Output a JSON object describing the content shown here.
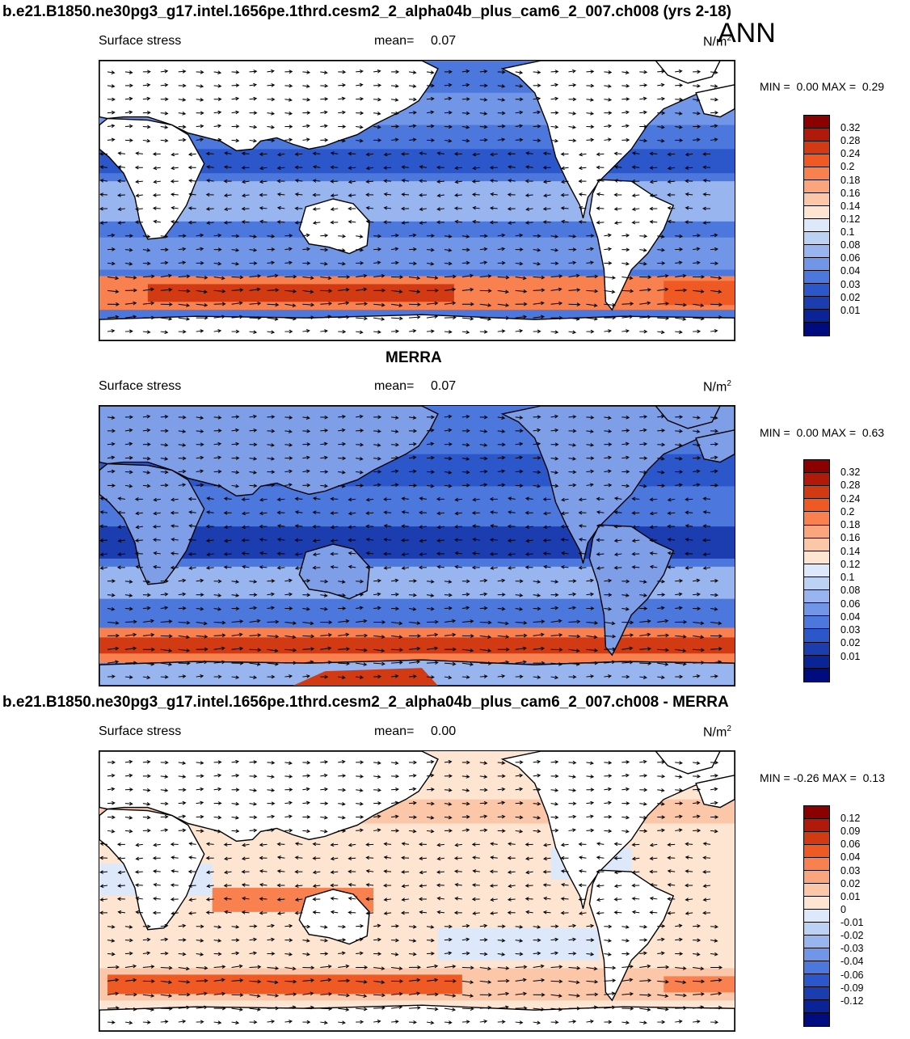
{
  "colors": {
    "ocean_deep": "#1f46c8",
    "ocean_mid": "#3d6de0",
    "ocean_light": "#9cb9f2",
    "stress_high": "#e8552b",
    "stress_peak": "#c8321a",
    "land": "#ffffff",
    "diff_pos": "#f6c3a7",
    "diff_neg": "#c8dbf4"
  },
  "season": "ANN",
  "panels": [
    {
      "title": "b.e21.B1850.ne30pg3_g17.intel.1656pe.1thrd.cesm2_2_alpha04b_plus_cam6_2_007.ch008 (yrs 2-18)",
      "variable": "Surface stress",
      "mean_label": "mean=",
      "mean_value": "0.07",
      "units": "N/m",
      "units_exp": "2",
      "min_label": "MIN =",
      "min_value": "0.00",
      "max_label": "MAX =",
      "max_value": "0.29",
      "colorbar": {
        "colors": [
          "#8b0000",
          "#b11a0b",
          "#d23a14",
          "#ef5a24",
          "#f98150",
          "#fba57e",
          "#fcc6a8",
          "#fde5d2",
          "#dde9fa",
          "#bcd2f5",
          "#98b5ef",
          "#7196e8",
          "#4c77dc",
          "#2b57cb",
          "#1c3db0",
          "#0a2396",
          "#000b80"
        ],
        "labels": [
          "0.32",
          "0.28",
          "0.24",
          "0.2",
          "0.18",
          "0.16",
          "0.14",
          "0.12",
          "0.1",
          "0.08",
          "0.06",
          "0.04",
          "0.03",
          "0.02",
          "0.01"
        ]
      }
    },
    {
      "title": "MERRA",
      "variable": "Surface stress",
      "mean_label": "mean=",
      "mean_value": "0.07",
      "units": "N/m",
      "units_exp": "2",
      "min_label": "MIN =",
      "min_value": "0.00",
      "max_label": "MAX =",
      "max_value": "0.63",
      "colorbar": {
        "colors": [
          "#8b0000",
          "#b11a0b",
          "#d23a14",
          "#ef5a24",
          "#f98150",
          "#fba57e",
          "#fcc6a8",
          "#fde5d2",
          "#dde9fa",
          "#bcd2f5",
          "#98b5ef",
          "#7196e8",
          "#4c77dc",
          "#2b57cb",
          "#1c3db0",
          "#0a2396",
          "#000b80"
        ],
        "labels": [
          "0.32",
          "0.28",
          "0.24",
          "0.2",
          "0.18",
          "0.16",
          "0.14",
          "0.12",
          "0.1",
          "0.08",
          "0.06",
          "0.04",
          "0.03",
          "0.02",
          "0.01"
        ]
      }
    },
    {
      "title": "b.e21.B1850.ne30pg3_g17.intel.1656pe.1thrd.cesm2_2_alpha04b_plus_cam6_2_007.ch008 - MERRA",
      "variable": "Surface stress",
      "mean_label": "mean=",
      "mean_value": "0.00",
      "units": "N/m",
      "units_exp": "2",
      "min_label": "MIN =",
      "min_value": "-0.26",
      "max_label": "MAX =",
      "max_value": "0.13",
      "colorbar": {
        "colors": [
          "#8b0000",
          "#b11a0b",
          "#d23a14",
          "#ef5a24",
          "#f98150",
          "#fba57e",
          "#fcc6a8",
          "#fde5d2",
          "#dde9fa",
          "#bcd2f5",
          "#98b5ef",
          "#7196e8",
          "#4c77dc",
          "#2b57cb",
          "#1c3db0",
          "#0a2396",
          "#000b80"
        ],
        "labels": [
          "0.12",
          "0.09",
          "0.06",
          "0.04",
          "0.03",
          "0.02",
          "0.01",
          "0",
          "-0.01",
          "-0.02",
          "-0.03",
          "-0.04",
          "-0.06",
          "-0.09",
          "-0.12"
        ]
      }
    }
  ]
}
